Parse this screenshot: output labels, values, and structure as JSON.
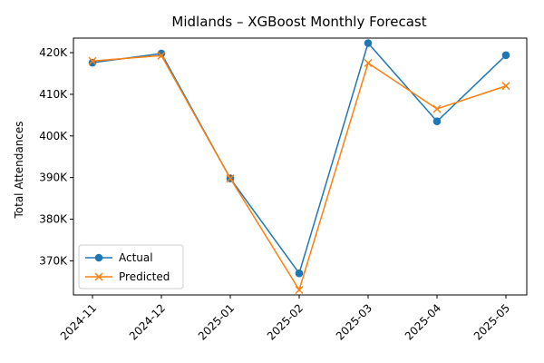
{
  "chart_data": {
    "type": "line",
    "title": "Midlands – XGBoost Monthly Forecast",
    "xlabel": "",
    "ylabel": "Total Attendances",
    "categories": [
      "2024-11",
      "2024-12",
      "2025-01",
      "2025-02",
      "2025-03",
      "2025-04",
      "2025-05"
    ],
    "series": [
      {
        "name": "Actual",
        "color": "#1f77b4",
        "marker": "circle",
        "values": [
          417600,
          419800,
          389800,
          367000,
          422300,
          403500,
          419400
        ]
      },
      {
        "name": "Predicted",
        "color": "#ff7f0e",
        "marker": "x",
        "values": [
          418000,
          419300,
          389800,
          363000,
          417500,
          406500,
          412000
        ]
      }
    ],
    "ylim": [
      361800,
      423500
    ],
    "yticks": [
      370000,
      380000,
      390000,
      400000,
      410000,
      420000
    ],
    "ytick_labels": [
      "370K",
      "380K",
      "390K",
      "400K",
      "410K",
      "420K"
    ],
    "legend_position": "lower-left",
    "grid": false
  }
}
